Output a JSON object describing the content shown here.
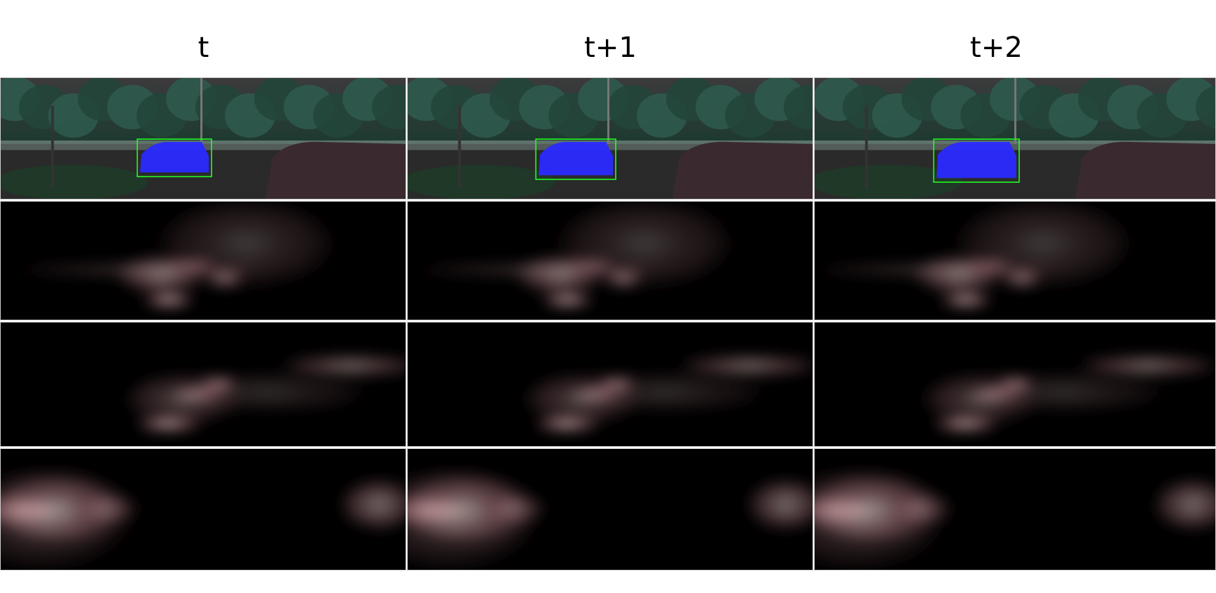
{
  "columns": [
    {
      "label": "t"
    },
    {
      "label": "t+1"
    },
    {
      "label": "t+2"
    }
  ],
  "rows": [
    {
      "type": "frame"
    },
    {
      "type": "heatmap"
    },
    {
      "type": "heatmap"
    },
    {
      "type": "heatmap"
    }
  ],
  "colors": {
    "sky": "#3c3a3c",
    "trees": "#1c3a30",
    "ground": "#2a2a2a",
    "car_mask": "#2a2aff",
    "bbox": "#22ff22",
    "heat_low": "#5a3a40",
    "heat_mid": "#a87c80",
    "heat_high": "#fff6ee"
  }
}
